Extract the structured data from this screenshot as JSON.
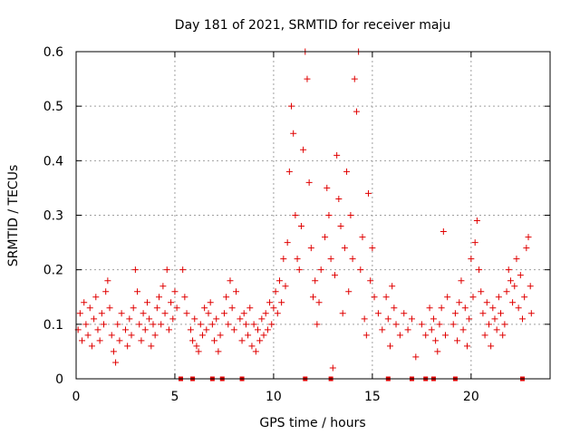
{
  "chart_data": {
    "type": "scatter",
    "title": "Day 181 of 2021, SRMTID for receiver maju",
    "xlabel": "GPS time / hours",
    "ylabel": "SRMTID / TECUs",
    "xlim": [
      0,
      24
    ],
    "ylim": [
      0,
      0.6
    ],
    "x_ticks": [
      0,
      5,
      10,
      15,
      20
    ],
    "y_ticks": [
      0,
      0.1,
      0.2,
      0.3,
      0.4,
      0.5,
      0.6
    ],
    "x_tick_labels": [
      "0",
      "5",
      "10",
      "15",
      "20"
    ],
    "y_tick_labels": [
      "0",
      "0.1",
      "0.2",
      "0.3",
      "0.4",
      "0.5",
      "0.6"
    ],
    "grid": true,
    "marker": "plus",
    "color": "#e00000",
    "series": [
      {
        "name": "SRMTID",
        "points": [
          [
            0.1,
            0.09
          ],
          [
            0.2,
            0.12
          ],
          [
            0.3,
            0.07
          ],
          [
            0.4,
            0.14
          ],
          [
            0.5,
            0.1
          ],
          [
            0.6,
            0.08
          ],
          [
            0.7,
            0.13
          ],
          [
            0.8,
            0.06
          ],
          [
            0.9,
            0.11
          ],
          [
            1.0,
            0.15
          ],
          [
            1.1,
            0.09
          ],
          [
            1.2,
            0.07
          ],
          [
            1.3,
            0.12
          ],
          [
            1.4,
            0.1
          ],
          [
            1.5,
            0.16
          ],
          [
            1.6,
            0.18
          ],
          [
            1.7,
            0.13
          ],
          [
            1.8,
            0.08
          ],
          [
            1.9,
            0.05
          ],
          [
            2.0,
            0.03
          ],
          [
            2.1,
            0.1
          ],
          [
            2.2,
            0.07
          ],
          [
            2.3,
            0.12
          ],
          [
            2.5,
            0.09
          ],
          [
            2.6,
            0.06
          ],
          [
            2.7,
            0.11
          ],
          [
            2.8,
            0.08
          ],
          [
            2.9,
            0.13
          ],
          [
            3.0,
            0.2
          ],
          [
            3.1,
            0.16
          ],
          [
            3.2,
            0.1
          ],
          [
            3.3,
            0.07
          ],
          [
            3.4,
            0.12
          ],
          [
            3.5,
            0.09
          ],
          [
            3.6,
            0.14
          ],
          [
            3.7,
            0.11
          ],
          [
            3.8,
            0.06
          ],
          [
            3.9,
            0.1
          ],
          [
            4.0,
            0.08
          ],
          [
            4.1,
            0.13
          ],
          [
            4.2,
            0.15
          ],
          [
            4.3,
            0.1
          ],
          [
            4.4,
            0.17
          ],
          [
            4.5,
            0.12
          ],
          [
            4.6,
            0.2
          ],
          [
            4.7,
            0.09
          ],
          [
            4.8,
            0.14
          ],
          [
            4.9,
            0.11
          ],
          [
            5.0,
            0.16
          ],
          [
            5.1,
            0.13
          ],
          [
            5.4,
            0.2
          ],
          [
            5.5,
            0.15
          ],
          [
            5.6,
            0.12
          ],
          [
            5.8,
            0.09
          ],
          [
            5.9,
            0.07
          ],
          [
            6.0,
            0.11
          ],
          [
            6.1,
            0.06
          ],
          [
            6.2,
            0.05
          ],
          [
            6.3,
            0.1
          ],
          [
            6.4,
            0.08
          ],
          [
            6.5,
            0.13
          ],
          [
            6.6,
            0.09
          ],
          [
            6.7,
            0.12
          ],
          [
            6.8,
            0.14
          ],
          [
            6.9,
            0.1
          ],
          [
            7.0,
            0.07
          ],
          [
            7.1,
            0.11
          ],
          [
            7.2,
            0.05
          ],
          [
            7.3,
            0.08
          ],
          [
            7.5,
            0.12
          ],
          [
            7.6,
            0.15
          ],
          [
            7.7,
            0.1
          ],
          [
            7.8,
            0.18
          ],
          [
            7.9,
            0.13
          ],
          [
            8.0,
            0.09
          ],
          [
            8.1,
            0.16
          ],
          [
            8.3,
            0.11
          ],
          [
            8.4,
            0.07
          ],
          [
            8.5,
            0.12
          ],
          [
            8.6,
            0.1
          ],
          [
            8.7,
            0.08
          ],
          [
            8.8,
            0.13
          ],
          [
            8.9,
            0.06
          ],
          [
            9.0,
            0.1
          ],
          [
            9.1,
            0.05
          ],
          [
            9.2,
            0.09
          ],
          [
            9.3,
            0.07
          ],
          [
            9.4,
            0.11
          ],
          [
            9.5,
            0.08
          ],
          [
            9.6,
            0.12
          ],
          [
            9.7,
            0.09
          ],
          [
            9.8,
            0.14
          ],
          [
            9.9,
            0.1
          ],
          [
            10.0,
            0.13
          ],
          [
            10.1,
            0.16
          ],
          [
            10.2,
            0.12
          ],
          [
            10.3,
            0.18
          ],
          [
            10.4,
            0.14
          ],
          [
            10.5,
            0.22
          ],
          [
            10.6,
            0.17
          ],
          [
            10.7,
            0.25
          ],
          [
            10.8,
            0.38
          ],
          [
            10.9,
            0.5
          ],
          [
            11.0,
            0.45
          ],
          [
            11.1,
            0.3
          ],
          [
            11.2,
            0.22
          ],
          [
            11.3,
            0.2
          ],
          [
            11.4,
            0.28
          ],
          [
            11.5,
            0.42
          ],
          [
            11.6,
            0.6
          ],
          [
            11.7,
            0.55
          ],
          [
            11.8,
            0.36
          ],
          [
            11.9,
            0.24
          ],
          [
            12.0,
            0.15
          ],
          [
            12.1,
            0.18
          ],
          [
            12.2,
            0.1
          ],
          [
            12.3,
            0.14
          ],
          [
            12.4,
            0.2
          ],
          [
            12.6,
            0.26
          ],
          [
            12.7,
            0.35
          ],
          [
            12.8,
            0.3
          ],
          [
            12.9,
            0.22
          ],
          [
            13.0,
            0.02
          ],
          [
            13.1,
            0.19
          ],
          [
            13.2,
            0.41
          ],
          [
            13.3,
            0.33
          ],
          [
            13.4,
            0.28
          ],
          [
            13.5,
            0.12
          ],
          [
            13.6,
            0.24
          ],
          [
            13.7,
            0.38
          ],
          [
            13.8,
            0.16
          ],
          [
            13.9,
            0.3
          ],
          [
            14.0,
            0.22
          ],
          [
            14.1,
            0.55
          ],
          [
            14.2,
            0.49
          ],
          [
            14.3,
            0.6
          ],
          [
            14.4,
            0.2
          ],
          [
            14.5,
            0.26
          ],
          [
            14.6,
            0.11
          ],
          [
            14.7,
            0.08
          ],
          [
            14.8,
            0.34
          ],
          [
            14.9,
            0.18
          ],
          [
            15.0,
            0.24
          ],
          [
            15.1,
            0.15
          ],
          [
            15.3,
            0.12
          ],
          [
            15.5,
            0.09
          ],
          [
            15.7,
            0.15
          ],
          [
            15.8,
            0.11
          ],
          [
            15.9,
            0.06
          ],
          [
            16.0,
            0.17
          ],
          [
            16.1,
            0.13
          ],
          [
            16.2,
            0.1
          ],
          [
            16.4,
            0.08
          ],
          [
            16.6,
            0.12
          ],
          [
            16.8,
            0.09
          ],
          [
            17.0,
            0.11
          ],
          [
            17.2,
            0.04
          ],
          [
            17.5,
            0.1
          ],
          [
            17.7,
            0.08
          ],
          [
            17.9,
            0.13
          ],
          [
            18.0,
            0.09
          ],
          [
            18.1,
            0.11
          ],
          [
            18.2,
            0.07
          ],
          [
            18.3,
            0.05
          ],
          [
            18.4,
            0.1
          ],
          [
            18.5,
            0.13
          ],
          [
            18.6,
            0.27
          ],
          [
            18.7,
            0.08
          ],
          [
            18.8,
            0.15
          ],
          [
            19.1,
            0.1
          ],
          [
            19.2,
            0.12
          ],
          [
            19.3,
            0.07
          ],
          [
            19.4,
            0.14
          ],
          [
            19.5,
            0.18
          ],
          [
            19.6,
            0.09
          ],
          [
            19.7,
            0.13
          ],
          [
            19.8,
            0.06
          ],
          [
            19.9,
            0.11
          ],
          [
            20.0,
            0.22
          ],
          [
            20.1,
            0.15
          ],
          [
            20.2,
            0.25
          ],
          [
            20.3,
            0.29
          ],
          [
            20.4,
            0.2
          ],
          [
            20.5,
            0.16
          ],
          [
            20.6,
            0.12
          ],
          [
            20.7,
            0.08
          ],
          [
            20.8,
            0.14
          ],
          [
            20.9,
            0.1
          ],
          [
            21.0,
            0.06
          ],
          [
            21.1,
            0.13
          ],
          [
            21.2,
            0.11
          ],
          [
            21.3,
            0.09
          ],
          [
            21.4,
            0.15
          ],
          [
            21.5,
            0.12
          ],
          [
            21.6,
            0.08
          ],
          [
            21.7,
            0.1
          ],
          [
            21.8,
            0.16
          ],
          [
            21.9,
            0.2
          ],
          [
            22.0,
            0.18
          ],
          [
            22.1,
            0.14
          ],
          [
            22.2,
            0.17
          ],
          [
            22.3,
            0.22
          ],
          [
            22.4,
            0.13
          ],
          [
            22.5,
            0.19
          ],
          [
            22.6,
            0.11
          ],
          [
            22.7,
            0.15
          ],
          [
            22.8,
            0.24
          ],
          [
            22.9,
            0.26
          ],
          [
            23.0,
            0.17
          ],
          [
            23.05,
            0.12
          ]
        ]
      }
    ],
    "zero_markers_x": [
      5.3,
      5.9,
      6.9,
      7.4,
      8.4,
      11.6,
      12.9,
      15.8,
      17.0,
      17.7,
      18.1,
      19.2,
      22.6
    ]
  }
}
